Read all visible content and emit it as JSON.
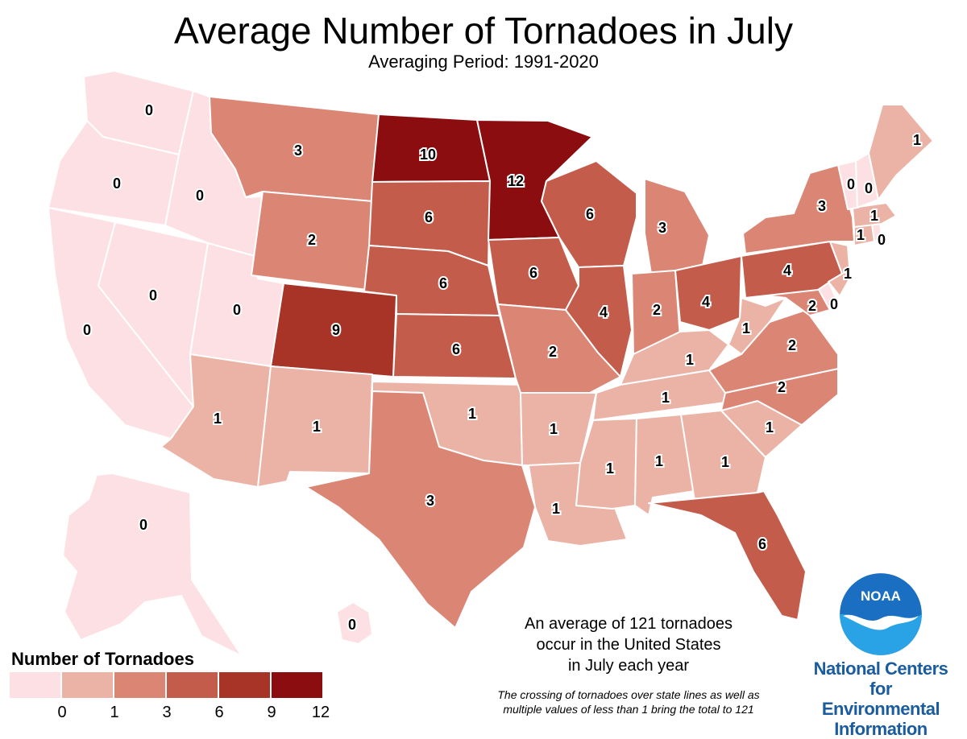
{
  "title": "Average Number of Tornadoes in July",
  "subtitle": "Averaging Period: 1991-2020",
  "legend": {
    "title": "Number of Tornadoes",
    "ticks": [
      "0",
      "1",
      "3",
      "6",
      "9",
      "12"
    ],
    "colors": [
      "#fde0e3",
      "#ebb3a6",
      "#db8575",
      "#c45c4b",
      "#a83327",
      "#8b0d0f"
    ]
  },
  "notes": {
    "line1": "An average of 121 tornadoes",
    "line2": "occur in the United States",
    "line3": "in July each year",
    "small1": "The crossing of tornadoes over state lines as well as",
    "small2": "multiple values of less than 1 bring the total to 121"
  },
  "logo": {
    "noaa_text": "NOAA",
    "ncei_line1": "National Centers for",
    "ncei_line2": "Environmental",
    "ncei_line3": "Information"
  },
  "states": [
    {
      "code": "WA",
      "value": "0",
      "color": "#fde0e3"
    },
    {
      "code": "OR",
      "value": "0",
      "color": "#fde0e3"
    },
    {
      "code": "CA",
      "value": "0",
      "color": "#fde0e3"
    },
    {
      "code": "NV",
      "value": "0",
      "color": "#fde0e3"
    },
    {
      "code": "ID",
      "value": "0",
      "color": "#fde0e3"
    },
    {
      "code": "UT",
      "value": "0",
      "color": "#fde0e3"
    },
    {
      "code": "AZ",
      "value": "1",
      "color": "#ebb3a6"
    },
    {
      "code": "MT",
      "value": "3",
      "color": "#db8575"
    },
    {
      "code": "WY",
      "value": "2",
      "color": "#db8575"
    },
    {
      "code": "CO",
      "value": "9",
      "color": "#a83327"
    },
    {
      "code": "NM",
      "value": "1",
      "color": "#ebb3a6"
    },
    {
      "code": "ND",
      "value": "10",
      "color": "#8b0d0f"
    },
    {
      "code": "SD",
      "value": "6",
      "color": "#c45c4b"
    },
    {
      "code": "NE",
      "value": "6",
      "color": "#c45c4b"
    },
    {
      "code": "KS",
      "value": "6",
      "color": "#c45c4b"
    },
    {
      "code": "OK",
      "value": "1",
      "color": "#ebb3a6"
    },
    {
      "code": "TX",
      "value": "3",
      "color": "#db8575"
    },
    {
      "code": "MN",
      "value": "12",
      "color": "#8b0d0f"
    },
    {
      "code": "IA",
      "value": "6",
      "color": "#c45c4b"
    },
    {
      "code": "MO",
      "value": "2",
      "color": "#db8575"
    },
    {
      "code": "AR",
      "value": "1",
      "color": "#ebb3a6"
    },
    {
      "code": "LA",
      "value": "1",
      "color": "#ebb3a6"
    },
    {
      "code": "WI",
      "value": "6",
      "color": "#c45c4b"
    },
    {
      "code": "IL",
      "value": "4",
      "color": "#c45c4b"
    },
    {
      "code": "MI",
      "value": "3",
      "color": "#db8575"
    },
    {
      "code": "IN",
      "value": "2",
      "color": "#db8575"
    },
    {
      "code": "OH",
      "value": "4",
      "color": "#c45c4b"
    },
    {
      "code": "KY",
      "value": "1",
      "color": "#ebb3a6"
    },
    {
      "code": "TN",
      "value": "1",
      "color": "#ebb3a6"
    },
    {
      "code": "MS",
      "value": "1",
      "color": "#ebb3a6"
    },
    {
      "code": "AL",
      "value": "1",
      "color": "#ebb3a6"
    },
    {
      "code": "GA",
      "value": "1",
      "color": "#ebb3a6"
    },
    {
      "code": "FL",
      "value": "6",
      "color": "#c45c4b"
    },
    {
      "code": "SC",
      "value": "1",
      "color": "#ebb3a6"
    },
    {
      "code": "NC",
      "value": "2",
      "color": "#db8575"
    },
    {
      "code": "VA",
      "value": "2",
      "color": "#db8575"
    },
    {
      "code": "WV",
      "value": "1",
      "color": "#ebb3a6"
    },
    {
      "code": "MD",
      "value": "2",
      "color": "#db8575"
    },
    {
      "code": "DE",
      "value": "0",
      "color": "#fde0e3"
    },
    {
      "code": "PA",
      "value": "4",
      "color": "#c45c4b"
    },
    {
      "code": "NJ",
      "value": "1",
      "color": "#ebb3a6"
    },
    {
      "code": "NY",
      "value": "3",
      "color": "#db8575"
    },
    {
      "code": "CT",
      "value": "1",
      "color": "#ebb3a6"
    },
    {
      "code": "RI",
      "value": "0",
      "color": "#fde0e3"
    },
    {
      "code": "MA",
      "value": "1",
      "color": "#ebb3a6"
    },
    {
      "code": "VT",
      "value": "0",
      "color": "#fde0e3"
    },
    {
      "code": "NH",
      "value": "0",
      "color": "#fde0e3"
    },
    {
      "code": "ME",
      "value": "1",
      "color": "#ebb3a6"
    },
    {
      "code": "AK",
      "value": "0",
      "color": "#fde0e3"
    },
    {
      "code": "HI",
      "value": "0",
      "color": "#fde0e3"
    }
  ]
}
